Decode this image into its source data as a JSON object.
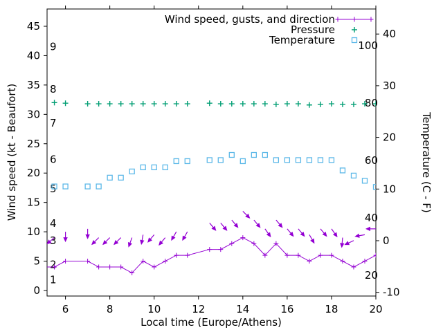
{
  "chart_data": {
    "type": "line",
    "title": "",
    "legend_position": "top-right-inside",
    "grid": false,
    "legend": [
      {
        "label": "Wind speed, gusts, and direction",
        "series": "wind",
        "sample": "line-with-plus",
        "color": "#9400d3"
      },
      {
        "label": "Pressure",
        "series": "pressure",
        "sample": "plus",
        "color": "#009e73"
      },
      {
        "label": "Temperature",
        "series": "temperature",
        "sample": "open-square",
        "color": "#5cb8e8"
      }
    ],
    "axes": {
      "x": {
        "label": "Local time (Europe/Athens)",
        "ticks": [
          6,
          8,
          10,
          12,
          14,
          16,
          18,
          20
        ],
        "range": [
          5.17,
          20
        ],
        "mirrored_top_ticks": true
      },
      "y_left": {
        "label": "Wind speed (kt - Beaufort)",
        "ticks": [
          0,
          5,
          10,
          15,
          20,
          25,
          30,
          35,
          40,
          45
        ],
        "range": [
          -1,
          48
        ],
        "inner_scale": "Beaufort",
        "inner_labels": [
          {
            "label": "1",
            "kt": 1.8
          },
          {
            "label": "2",
            "kt": 4.4
          },
          {
            "label": "3",
            "kt": 8.5
          },
          {
            "label": "4",
            "kt": 11.4
          },
          {
            "label": "5",
            "kt": 17.3
          },
          {
            "label": "6",
            "kt": 22.3
          },
          {
            "label": "7",
            "kt": 28.5
          },
          {
            "label": "8",
            "kt": 34.3
          },
          {
            "label": "9",
            "kt": 41.5
          }
        ]
      },
      "y_right": {
        "label": "Temperature (C - F)",
        "ticks": [
          -10,
          0,
          10,
          20,
          30,
          40
        ],
        "range": [
          -10.7,
          44.9
        ],
        "inner_scale": "Fahrenheit",
        "inner_labels": [
          {
            "label": "20",
            "f": 20
          },
          {
            "label": "40",
            "f": 40
          },
          {
            "label": "60",
            "f": 60
          },
          {
            "label": "80",
            "f": 80
          },
          {
            "label": "100",
            "f": 100
          }
        ]
      }
    },
    "times": [
      5.5,
      6,
      7,
      7.5,
      8,
      8.5,
      9,
      9.5,
      10,
      10.5,
      11,
      11.5,
      12.5,
      13,
      13.5,
      14,
      14.5,
      15,
      15.5,
      16,
      16.5,
      17,
      17.5,
      18,
      18.5,
      19,
      19.5,
      20
    ],
    "missing_times": [
      6.5,
      12
    ],
    "series": {
      "wind": {
        "axis": "y_left",
        "color": "#9400d3",
        "x": [
          5.0,
          5.5,
          6,
          7,
          7.5,
          8,
          8.5,
          9,
          9.5,
          10,
          10.5,
          11,
          11.5,
          12.5,
          13,
          13.5,
          14,
          14.5,
          15,
          15.5,
          16,
          16.5,
          17,
          17.5,
          18,
          18.5,
          19,
          19.5,
          20
        ],
        "kt": [
          4,
          4,
          5,
          5,
          4,
          4,
          4,
          3,
          5,
          4,
          5,
          6,
          6,
          7,
          7,
          8,
          9,
          8,
          6,
          8,
          6,
          6,
          5,
          6,
          6,
          5,
          4,
          5,
          6
        ]
      },
      "gusts": {
        "axis": "y_left",
        "color": "#9400d3",
        "kt": [
          9,
          10,
          10.5,
          9,
          9,
          9,
          9,
          9.5,
          9.5,
          9,
          10,
          10,
          11.5,
          11.5,
          12,
          13.5,
          12,
          10.5,
          12,
          10.5,
          10.5,
          9.5,
          10.5,
          10.5,
          9,
          8.5,
          9.5,
          10.5
        ],
        "arrow_rotation_deg_from_down": [
          50,
          0,
          0,
          45,
          45,
          45,
          20,
          10,
          40,
          40,
          30,
          30,
          -40,
          -40,
          -40,
          -45,
          -40,
          -35,
          -40,
          -40,
          -40,
          -30,
          -40,
          -35,
          5,
          65,
          80,
          90
        ]
      },
      "pressure": {
        "axis": "displayed-flat-no-visible-scale",
        "color": "#009e73",
        "display_value_left_axis_units": [
          32,
          31.9,
          31.8,
          31.8,
          31.8,
          31.8,
          31.8,
          31.8,
          31.8,
          31.8,
          31.8,
          31.8,
          31.9,
          31.8,
          31.8,
          31.8,
          31.8,
          31.8,
          31.7,
          31.8,
          31.8,
          31.6,
          31.7,
          31.8,
          31.7,
          31.7,
          31.8,
          31.8
        ]
      },
      "temperature": {
        "axis": "y_right",
        "color": "#5cb8e8",
        "celsius": [
          10.5,
          10.5,
          10.5,
          10.5,
          12.2,
          12.2,
          13.4,
          14.2,
          14.2,
          14.2,
          15.4,
          15.4,
          15.6,
          15.6,
          16.6,
          15.4,
          16.6,
          16.6,
          15.6,
          15.6,
          15.6,
          15.6,
          15.6,
          15.6,
          13.6,
          12.6,
          11.6,
          10.4
        ]
      }
    },
    "colors": {
      "wind": "#9400d3",
      "pressure": "#009e73",
      "temperature": "#5cb8e8",
      "border": "#000000",
      "text": "#000000",
      "background": "#ffffff"
    }
  }
}
